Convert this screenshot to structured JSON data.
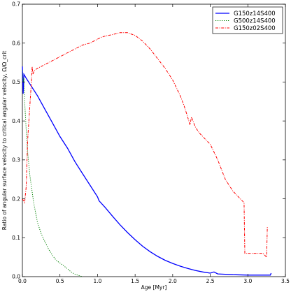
{
  "chart_data": {
    "type": "line",
    "title": "",
    "xlabel": "Age [Myr]",
    "ylabel": "Ratio of angular surface velocity to critical angular velocity, Ω/Ω_crit",
    "xlim": [
      0,
      3.5
    ],
    "ylim": [
      0,
      0.7
    ],
    "grid": false,
    "legend_position": "top-right",
    "x_ticks": [
      "0.0",
      "0.5",
      "1.0",
      "1.5",
      "2.0",
      "2.5",
      "3.0",
      "3.5"
    ],
    "y_ticks": [
      "0.0",
      "0.1",
      "0.2",
      "0.3",
      "0.4",
      "0.5",
      "0.6",
      "0.7"
    ],
    "series": [
      {
        "name": "G150z14S400",
        "color": "#0000ff",
        "dash": "solid",
        "points": [
          [
            0.0,
            0.54
          ],
          [
            0.01,
            0.47
          ],
          [
            0.02,
            0.52
          ],
          [
            0.05,
            0.51
          ],
          [
            0.1,
            0.495
          ],
          [
            0.2,
            0.465
          ],
          [
            0.3,
            0.43
          ],
          [
            0.4,
            0.395
          ],
          [
            0.5,
            0.36
          ],
          [
            0.6,
            0.33
          ],
          [
            0.7,
            0.295
          ],
          [
            0.8,
            0.265
          ],
          [
            0.9,
            0.235
          ],
          [
            1.0,
            0.205
          ],
          [
            1.02,
            0.195
          ],
          [
            1.1,
            0.178
          ],
          [
            1.2,
            0.155
          ],
          [
            1.3,
            0.133
          ],
          [
            1.4,
            0.113
          ],
          [
            1.5,
            0.095
          ],
          [
            1.6,
            0.078
          ],
          [
            1.7,
            0.064
          ],
          [
            1.8,
            0.052
          ],
          [
            1.9,
            0.042
          ],
          [
            2.0,
            0.034
          ],
          [
            2.1,
            0.027
          ],
          [
            2.2,
            0.021
          ],
          [
            2.3,
            0.016
          ],
          [
            2.4,
            0.012
          ],
          [
            2.5,
            0.009
          ],
          [
            2.55,
            0.012
          ],
          [
            2.6,
            0.007
          ],
          [
            2.8,
            0.005
          ],
          [
            3.0,
            0.004
          ],
          [
            3.3,
            0.004
          ],
          [
            3.31,
            0.009
          ]
        ]
      },
      {
        "name": "G500z14S400",
        "color": "#008000",
        "dash": "dotted",
        "points": [
          [
            0.0,
            0.53
          ],
          [
            0.01,
            0.5
          ],
          [
            0.02,
            0.51
          ],
          [
            0.03,
            0.45
          ],
          [
            0.05,
            0.38
          ],
          [
            0.07,
            0.32
          ],
          [
            0.1,
            0.26
          ],
          [
            0.15,
            0.19
          ],
          [
            0.2,
            0.14
          ],
          [
            0.25,
            0.11
          ],
          [
            0.3,
            0.09
          ],
          [
            0.35,
            0.07
          ],
          [
            0.4,
            0.055
          ],
          [
            0.45,
            0.042
          ],
          [
            0.5,
            0.035
          ],
          [
            0.55,
            0.028
          ],
          [
            0.6,
            0.02
          ],
          [
            0.65,
            0.012
          ],
          [
            0.7,
            0.006
          ],
          [
            0.75,
            0.003
          ],
          [
            0.8,
            0.0
          ]
        ]
      },
      {
        "name": "G150z02S400",
        "color": "#ff0000",
        "dash": "dashdot",
        "points": [
          [
            0.0,
            0.2
          ],
          [
            0.03,
            0.19
          ],
          [
            0.05,
            0.23
          ],
          [
            0.07,
            0.35
          ],
          [
            0.1,
            0.44
          ],
          [
            0.12,
            0.5
          ],
          [
            0.13,
            0.54
          ],
          [
            0.14,
            0.52
          ],
          [
            0.16,
            0.53
          ],
          [
            0.2,
            0.535
          ],
          [
            0.3,
            0.545
          ],
          [
            0.4,
            0.555
          ],
          [
            0.5,
            0.565
          ],
          [
            0.6,
            0.575
          ],
          [
            0.7,
            0.585
          ],
          [
            0.8,
            0.595
          ],
          [
            0.9,
            0.6
          ],
          [
            1.0,
            0.61
          ],
          [
            1.05,
            0.615
          ],
          [
            1.1,
            0.618
          ],
          [
            1.2,
            0.622
          ],
          [
            1.3,
            0.627
          ],
          [
            1.4,
            0.627
          ],
          [
            1.45,
            0.623
          ],
          [
            1.5,
            0.62
          ],
          [
            1.6,
            0.605
          ],
          [
            1.7,
            0.585
          ],
          [
            1.8,
            0.56
          ],
          [
            1.9,
            0.535
          ],
          [
            2.0,
            0.505
          ],
          [
            2.1,
            0.465
          ],
          [
            2.15,
            0.44
          ],
          [
            2.2,
            0.41
          ],
          [
            2.23,
            0.39
          ],
          [
            2.25,
            0.41
          ],
          [
            2.3,
            0.385
          ],
          [
            2.35,
            0.37
          ],
          [
            2.4,
            0.36
          ],
          [
            2.5,
            0.34
          ],
          [
            2.6,
            0.3
          ],
          [
            2.7,
            0.25
          ],
          [
            2.8,
            0.22
          ],
          [
            2.9,
            0.2
          ],
          [
            2.95,
            0.19
          ],
          [
            2.96,
            0.06
          ],
          [
            3.0,
            0.06
          ],
          [
            3.1,
            0.06
          ],
          [
            3.2,
            0.06
          ],
          [
            3.25,
            0.05
          ],
          [
            3.26,
            0.13
          ]
        ]
      }
    ]
  }
}
